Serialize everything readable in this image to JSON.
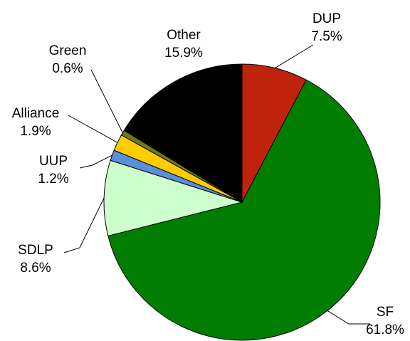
{
  "chart_data": {
    "type": "pie",
    "slices": [
      {
        "name": "DUP",
        "label": "7.5%",
        "value": 7.5,
        "color": "#c0230b"
      },
      {
        "name": "SF",
        "label": "61.8%",
        "value": 61.8,
        "color": "#017d01"
      },
      {
        "name": "SDLP",
        "label": "8.6%",
        "value": 8.6,
        "color": "#ccffcc"
      },
      {
        "name": "UUP",
        "label": "1.2%",
        "value": 1.2,
        "color": "#5b8fdc"
      },
      {
        "name": "Alliance",
        "label": "1.9%",
        "value": 1.9,
        "color": "#ffcc00"
      },
      {
        "name": "Green",
        "label": "0.6%",
        "value": 0.6,
        "color": "#6f7a17"
      },
      {
        "name": "Other",
        "label": "15.9%",
        "value": 15.9,
        "color": "#000000"
      }
    ]
  }
}
